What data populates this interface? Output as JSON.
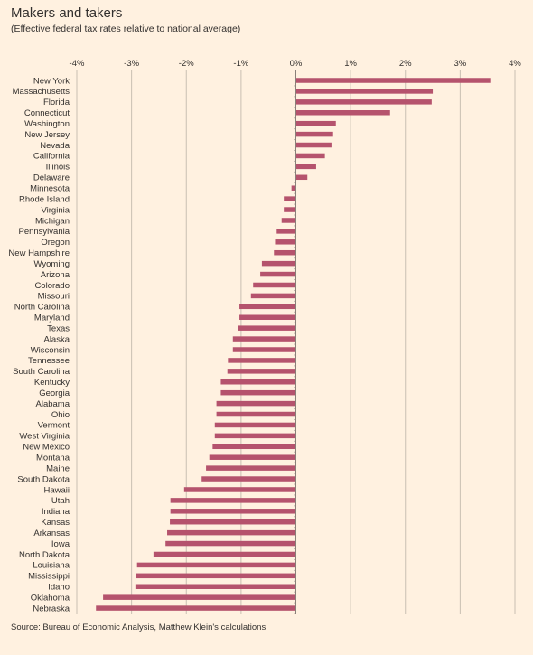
{
  "title": "Makers and takers",
  "subtitle": "(Effective federal tax rates relative to national average)",
  "source": "Source: Bureau of Economic Analysis, Matthew Klein's calculations",
  "colors": {
    "background": "#fff1e0",
    "bar": "#b5536d",
    "grid": "#c9bfb2",
    "axis": "#8a8079"
  },
  "chart_data": {
    "type": "bar",
    "orientation": "horizontal",
    "title": "Makers and takers",
    "subtitle": "(Effective federal tax rates relative to national average)",
    "xlabel": "",
    "ylabel": "",
    "xlim": [
      -4,
      4
    ],
    "xticks": [
      -4,
      -3,
      -2,
      -1,
      0,
      1,
      2,
      3,
      4
    ],
    "xtick_labels": [
      "-4%",
      "-3%",
      "-2%",
      "-1%",
      "0%",
      "1%",
      "2%",
      "3%",
      "4%"
    ],
    "grid": true,
    "categories": [
      "New York",
      "Massachusetts",
      "Florida",
      "Connecticut",
      "Washington",
      "New Jersey",
      "Nevada",
      "California",
      "Illinois",
      "Delaware",
      "Minnesota",
      "Rhode Island",
      "Virginia",
      "Michigan",
      "Pennsylvania",
      "Oregon",
      "New Hampshire",
      "Wyoming",
      "Arizona",
      "Colorado",
      "Missouri",
      "North Carolina",
      "Maryland",
      "Texas",
      "Alaska",
      "Wisconsin",
      "Tennessee",
      "South Carolina",
      "Kentucky",
      "Georgia",
      "Alabama",
      "Ohio",
      "Vermont",
      "West Virginia",
      "New Mexico",
      "Montana",
      "Maine",
      "South Dakota",
      "Hawaii",
      "Utah",
      "Indiana",
      "Kansas",
      "Arkansas",
      "Iowa",
      "North Dakota",
      "Louisiana",
      "Mississippi",
      "Idaho",
      "Oklahoma",
      "Nebraska"
    ],
    "values": [
      3.55,
      2.5,
      2.48,
      1.72,
      0.73,
      0.68,
      0.65,
      0.53,
      0.37,
      0.21,
      -0.08,
      -0.22,
      -0.22,
      -0.26,
      -0.35,
      -0.38,
      -0.4,
      -0.62,
      -0.65,
      -0.78,
      -0.82,
      -1.03,
      -1.03,
      -1.05,
      -1.15,
      -1.15,
      -1.24,
      -1.25,
      -1.37,
      -1.37,
      -1.45,
      -1.45,
      -1.48,
      -1.48,
      -1.52,
      -1.58,
      -1.64,
      -1.72,
      -2.04,
      -2.29,
      -2.29,
      -2.3,
      -2.35,
      -2.38,
      -2.6,
      -2.9,
      -2.92,
      -2.93,
      -3.52,
      -3.65
    ]
  }
}
